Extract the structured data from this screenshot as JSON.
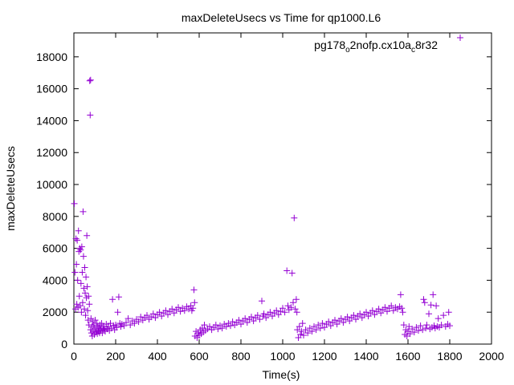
{
  "chart_data": {
    "type": "scatter",
    "title": "maxDeleteUsecs vs Time for qp1000.L6",
    "xlabel": "Time(s)",
    "ylabel": "maxDeleteUsecs",
    "xlim": [
      0,
      2000
    ],
    "ylim": [
      0,
      19500
    ],
    "x_ticks": [
      0,
      200,
      400,
      600,
      800,
      1000,
      1200,
      1400,
      1600,
      1800,
      2000
    ],
    "y_ticks": [
      0,
      2000,
      4000,
      6000,
      8000,
      10000,
      12000,
      14000,
      16000,
      18000
    ],
    "x_tick_labels": [
      "0",
      "200",
      "400",
      "600",
      "800",
      "1000",
      "1200",
      "1400",
      "1600",
      "1800",
      "2000"
    ],
    "y_tick_labels": [
      "0",
      "2000",
      "4000",
      "6000",
      "8000",
      "10000",
      "12000",
      "14000",
      "16000",
      "18000"
    ],
    "grid": false,
    "legend_position": "top-right",
    "marker": "plus",
    "color": "#9400d3",
    "series": [
      {
        "name": "pg178_o2nofp.cx10a_c8r32",
        "legend_parts": [
          {
            "text": "pg178",
            "sub": false
          },
          {
            "text": "o",
            "sub": true
          },
          {
            "text": "2nofp.cx10a",
            "sub": false
          },
          {
            "text": "c",
            "sub": true
          },
          {
            "text": "8r32",
            "sub": false
          }
        ],
        "points": [
          [
            2,
            8800
          ],
          [
            5,
            4500
          ],
          [
            8,
            2200
          ],
          [
            10,
            6600
          ],
          [
            12,
            5000
          ],
          [
            14,
            2500
          ],
          [
            16,
            6500
          ],
          [
            18,
            4000
          ],
          [
            20,
            2300
          ],
          [
            22,
            7100
          ],
          [
            24,
            5800
          ],
          [
            26,
            3000
          ],
          [
            28,
            6000
          ],
          [
            30,
            2400
          ],
          [
            32,
            5900
          ],
          [
            34,
            3800
          ],
          [
            36,
            2000
          ],
          [
            38,
            6100
          ],
          [
            40,
            4500
          ],
          [
            42,
            2600
          ],
          [
            44,
            8300
          ],
          [
            46,
            5500
          ],
          [
            48,
            3500
          ],
          [
            50,
            2200
          ],
          [
            52,
            4800
          ],
          [
            54,
            3200
          ],
          [
            56,
            1800
          ],
          [
            58,
            4200
          ],
          [
            60,
            2900
          ],
          [
            62,
            6800
          ],
          [
            64,
            3600
          ],
          [
            66,
            2100
          ],
          [
            68,
            1500
          ],
          [
            70,
            3000
          ],
          [
            72,
            1200
          ],
          [
            74,
            2500
          ],
          [
            76,
            16500
          ],
          [
            78,
            14350
          ],
          [
            80,
            16550
          ],
          [
            80,
            900
          ],
          [
            82,
            1600
          ],
          [
            84,
            700
          ],
          [
            86,
            1100
          ],
          [
            88,
            500
          ],
          [
            90,
            1400
          ],
          [
            92,
            800
          ],
          [
            95,
            1200
          ],
          [
            98,
            600
          ],
          [
            100,
            1000
          ],
          [
            102,
            1500
          ],
          [
            105,
            750
          ],
          [
            108,
            900
          ],
          [
            110,
            1300
          ],
          [
            112,
            650
          ],
          [
            115,
            1100
          ],
          [
            118,
            800
          ],
          [
            120,
            1000
          ],
          [
            123,
            700
          ],
          [
            125,
            1200
          ],
          [
            128,
            850
          ],
          [
            130,
            950
          ],
          [
            133,
            1300
          ],
          [
            136,
            700
          ],
          [
            140,
            1100
          ],
          [
            143,
            900
          ],
          [
            146,
            1000
          ],
          [
            150,
            800
          ],
          [
            155,
            1250
          ],
          [
            160,
            950
          ],
          [
            165,
            1100
          ],
          [
            170,
            850
          ],
          [
            175,
            1300
          ],
          [
            180,
            1000
          ],
          [
            185,
            2800
          ],
          [
            190,
            1150
          ],
          [
            195,
            900
          ],
          [
            200,
            1200
          ],
          [
            205,
            1050
          ],
          [
            210,
            2000
          ],
          [
            215,
            2950
          ],
          [
            220,
            1300
          ],
          [
            225,
            1100
          ],
          [
            230,
            1250
          ],
          [
            240,
            1150
          ],
          [
            250,
            1350
          ],
          [
            260,
            1600
          ],
          [
            270,
            1200
          ],
          [
            280,
            1450
          ],
          [
            290,
            1300
          ],
          [
            300,
            1550
          ],
          [
            310,
            1400
          ],
          [
            320,
            1700
          ],
          [
            330,
            1500
          ],
          [
            340,
            1650
          ],
          [
            350,
            1800
          ],
          [
            360,
            1550
          ],
          [
            370,
            1700
          ],
          [
            380,
            1900
          ],
          [
            390,
            1650
          ],
          [
            400,
            1850
          ],
          [
            410,
            2000
          ],
          [
            420,
            1750
          ],
          [
            430,
            1950
          ],
          [
            440,
            2100
          ],
          [
            450,
            1850
          ],
          [
            460,
            2050
          ],
          [
            470,
            2200
          ],
          [
            480,
            1950
          ],
          [
            490,
            2150
          ],
          [
            500,
            2300
          ],
          [
            510,
            2050
          ],
          [
            520,
            2250
          ],
          [
            530,
            2100
          ],
          [
            540,
            2350
          ],
          [
            550,
            2200
          ],
          [
            560,
            2400
          ],
          [
            565,
            2100
          ],
          [
            570,
            2250
          ],
          [
            575,
            3400
          ],
          [
            578,
            2600
          ],
          [
            580,
            500
          ],
          [
            585,
            800
          ],
          [
            590,
            400
          ],
          [
            595,
            700
          ],
          [
            600,
            550
          ],
          [
            605,
            900
          ],
          [
            610,
            650
          ],
          [
            615,
            1000
          ],
          [
            620,
            750
          ],
          [
            625,
            1200
          ],
          [
            630,
            850
          ],
          [
            640,
            950
          ],
          [
            650,
            1100
          ],
          [
            660,
            900
          ],
          [
            670,
            1050
          ],
          [
            680,
            1200
          ],
          [
            690,
            950
          ],
          [
            700,
            1150
          ],
          [
            710,
            1000
          ],
          [
            720,
            1250
          ],
          [
            730,
            1100
          ],
          [
            740,
            1300
          ],
          [
            750,
            1150
          ],
          [
            760,
            1400
          ],
          [
            770,
            1200
          ],
          [
            780,
            1350
          ],
          [
            790,
            1500
          ],
          [
            800,
            1250
          ],
          [
            810,
            1450
          ],
          [
            820,
            1600
          ],
          [
            830,
            1350
          ],
          [
            840,
            1550
          ],
          [
            850,
            1700
          ],
          [
            860,
            1450
          ],
          [
            870,
            1650
          ],
          [
            880,
            1800
          ],
          [
            890,
            1550
          ],
          [
            900,
            2700
          ],
          [
            905,
            1750
          ],
          [
            910,
            1900
          ],
          [
            920,
            1650
          ],
          [
            930,
            1850
          ],
          [
            940,
            2000
          ],
          [
            950,
            1750
          ],
          [
            960,
            1950
          ],
          [
            970,
            2100
          ],
          [
            980,
            1850
          ],
          [
            990,
            2050
          ],
          [
            1000,
            2250
          ],
          [
            1010,
            2000
          ],
          [
            1020,
            4600
          ],
          [
            1025,
            2400
          ],
          [
            1030,
            2150
          ],
          [
            1040,
            2300
          ],
          [
            1045,
            4450
          ],
          [
            1050,
            2600
          ],
          [
            1055,
            7900
          ],
          [
            1060,
            2200
          ],
          [
            1065,
            2800
          ],
          [
            1068,
            2000
          ],
          [
            1070,
            900
          ],
          [
            1075,
            400
          ],
          [
            1080,
            1100
          ],
          [
            1085,
            600
          ],
          [
            1090,
            800
          ],
          [
            1095,
            1300
          ],
          [
            1100,
            550
          ],
          [
            1110,
            900
          ],
          [
            1120,
            700
          ],
          [
            1130,
            1000
          ],
          [
            1140,
            800
          ],
          [
            1150,
            1100
          ],
          [
            1160,
            900
          ],
          [
            1170,
            1200
          ],
          [
            1180,
            1000
          ],
          [
            1190,
            1300
          ],
          [
            1200,
            1050
          ],
          [
            1210,
            1250
          ],
          [
            1220,
            1400
          ],
          [
            1230,
            1150
          ],
          [
            1240,
            1350
          ],
          [
            1250,
            1500
          ],
          [
            1260,
            1250
          ],
          [
            1270,
            1450
          ],
          [
            1280,
            1600
          ],
          [
            1290,
            1350
          ],
          [
            1300,
            1550
          ],
          [
            1310,
            1700
          ],
          [
            1320,
            1450
          ],
          [
            1330,
            1650
          ],
          [
            1340,
            1800
          ],
          [
            1350,
            1550
          ],
          [
            1360,
            1750
          ],
          [
            1370,
            1900
          ],
          [
            1380,
            1650
          ],
          [
            1390,
            1850
          ],
          [
            1400,
            2000
          ],
          [
            1410,
            1750
          ],
          [
            1420,
            1950
          ],
          [
            1430,
            2100
          ],
          [
            1440,
            1850
          ],
          [
            1450,
            2050
          ],
          [
            1460,
            2200
          ],
          [
            1470,
            1950
          ],
          [
            1480,
            2150
          ],
          [
            1490,
            2300
          ],
          [
            1500,
            2050
          ],
          [
            1510,
            2250
          ],
          [
            1520,
            2400
          ],
          [
            1530,
            2100
          ],
          [
            1540,
            2300
          ],
          [
            1550,
            2200
          ],
          [
            1560,
            2350
          ],
          [
            1565,
            3100
          ],
          [
            1570,
            2250
          ],
          [
            1575,
            2000
          ],
          [
            1580,
            1200
          ],
          [
            1585,
            600
          ],
          [
            1590,
            900
          ],
          [
            1595,
            500
          ],
          [
            1600,
            800
          ],
          [
            1605,
            1100
          ],
          [
            1610,
            650
          ],
          [
            1620,
            950
          ],
          [
            1630,
            750
          ],
          [
            1640,
            1050
          ],
          [
            1650,
            850
          ],
          [
            1660,
            1150
          ],
          [
            1670,
            900
          ],
          [
            1675,
            2800
          ],
          [
            1680,
            2600
          ],
          [
            1685,
            1000
          ],
          [
            1690,
            1200
          ],
          [
            1700,
            1900
          ],
          [
            1705,
            950
          ],
          [
            1710,
            2450
          ],
          [
            1715,
            1050
          ],
          [
            1720,
            3100
          ],
          [
            1725,
            1150
          ],
          [
            1730,
            1000
          ],
          [
            1735,
            2400
          ],
          [
            1740,
            1100
          ],
          [
            1745,
            1600
          ],
          [
            1750,
            1050
          ],
          [
            1760,
            1200
          ],
          [
            1770,
            1800
          ],
          [
            1780,
            1100
          ],
          [
            1790,
            1250
          ],
          [
            1795,
            2000
          ],
          [
            1800,
            1150
          ]
        ],
        "legend_marker_point": [
          1850,
          19200
        ]
      }
    ]
  }
}
